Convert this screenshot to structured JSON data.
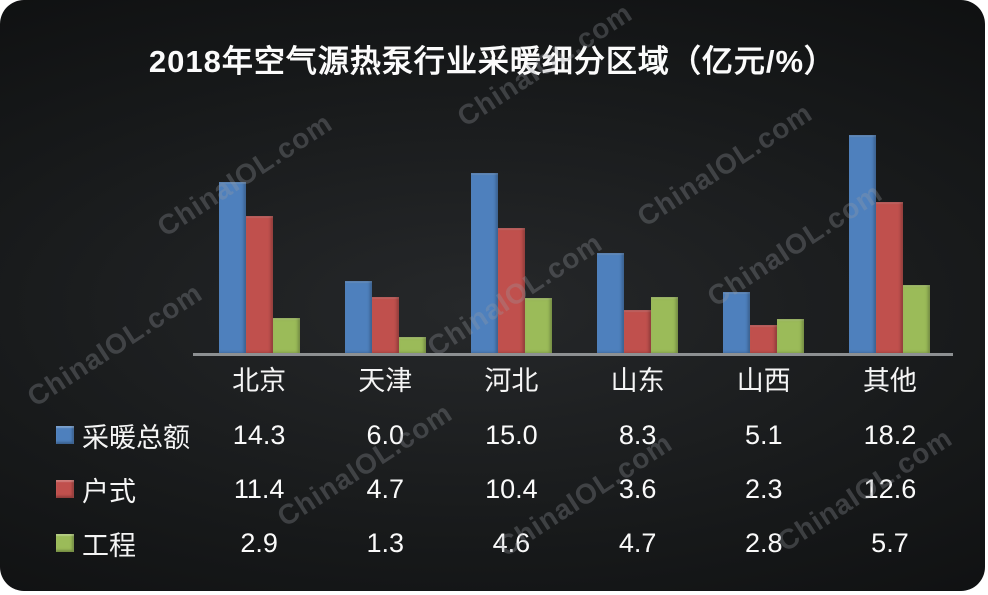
{
  "watermark": {
    "text": "ChinaIOL.com"
  },
  "chart_data": {
    "type": "bar",
    "title": "2018年空气源热泵行业采暖细分区域（亿元/%）",
    "categories": [
      "北京",
      "天津",
      "河北",
      "山东",
      "山西",
      "其他"
    ],
    "series": [
      {
        "name": "采暖总额",
        "color": "#4E80BD",
        "values": [
          14.3,
          6.0,
          15.0,
          8.3,
          5.1,
          18.2
        ]
      },
      {
        "name": "户式",
        "color": "#C0504D",
        "values": [
          11.4,
          4.7,
          10.4,
          3.6,
          2.3,
          12.6
        ]
      },
      {
        "name": "工程",
        "color": "#9BBB59",
        "values": [
          2.9,
          1.3,
          4.6,
          4.7,
          2.8,
          5.7
        ]
      }
    ],
    "ylim": [
      0,
      18.6
    ],
    "value_decimals": 1,
    "unit": "亿元/%",
    "grid": false,
    "legend_position": "table-left",
    "axis_line_color": "#8d9092",
    "background": "dark",
    "text_color": "#f5f5f5"
  }
}
